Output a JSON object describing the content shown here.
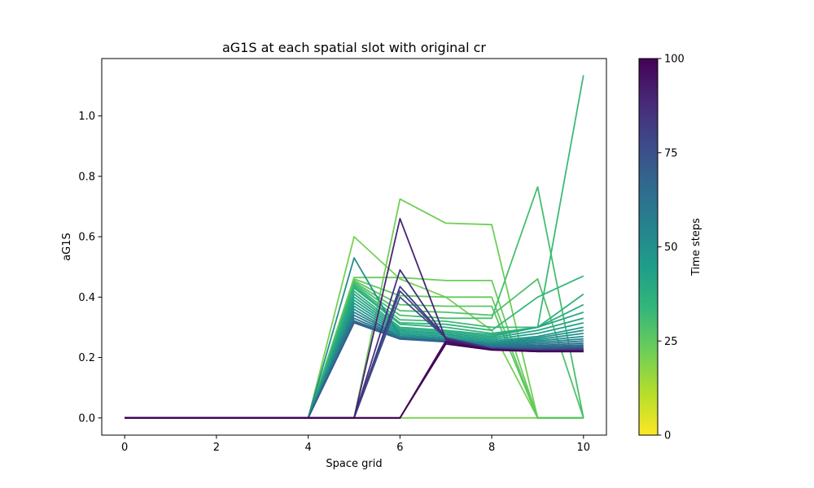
{
  "chart_data": {
    "type": "line",
    "title": "aG1S at each spatial slot with original cr",
    "xlabel": "Space grid",
    "ylabel": "aG1S",
    "xlim": [
      -0.5,
      10.5
    ],
    "ylim": [
      -0.057,
      1.19
    ],
    "x_ticks": [
      0,
      2,
      4,
      6,
      8,
      10
    ],
    "x_tick_labels": [
      "0",
      "2",
      "4",
      "6",
      "8",
      "10"
    ],
    "y_ticks": [
      0.0,
      0.2,
      0.4,
      0.6,
      0.8,
      1.0
    ],
    "y_tick_labels": [
      "0.0",
      "0.2",
      "0.4",
      "0.6",
      "0.8",
      "1.0"
    ],
    "x": [
      0,
      1,
      2,
      3,
      4,
      5,
      6,
      7,
      8,
      9,
      10
    ],
    "grid": false,
    "legend": "none",
    "colormap": "viridis",
    "colormap_stops": [
      "#fde725",
      "#b5de2b",
      "#6ece58",
      "#35b779",
      "#1f9e89",
      "#26828e",
      "#31688e",
      "#3e4989",
      "#482878",
      "#440154"
    ],
    "colorbar": {
      "label": "Time steps",
      "range": [
        0,
        100
      ],
      "ticks": [
        0,
        25,
        50,
        75,
        100
      ],
      "tick_labels": [
        "0",
        "25",
        "50",
        "75",
        "100"
      ]
    },
    "series": [
      {
        "time": 20,
        "values": [
          0,
          0,
          0,
          0,
          0,
          0,
          0,
          0,
          0,
          0,
          0
        ]
      },
      {
        "time": 21,
        "values": [
          0,
          0,
          0,
          0,
          0,
          0.6,
          0.46,
          0.4,
          0.29,
          0,
          0
        ]
      },
      {
        "time": 22,
        "values": [
          0,
          0,
          0,
          0,
          0,
          0,
          0.725,
          0.645,
          0.64,
          0,
          0
        ]
      },
      {
        "time": 23,
        "values": [
          0,
          0,
          0,
          0,
          0,
          0.465,
          0.465,
          0.455,
          0.455,
          0,
          0
        ]
      },
      {
        "time": 24,
        "values": [
          0,
          0,
          0,
          0,
          0,
          0.46,
          0.405,
          0.4,
          0.4,
          0,
          0
        ]
      },
      {
        "time": 26,
        "values": [
          0,
          0,
          0,
          0,
          0,
          0.455,
          0.375,
          0.37,
          0.37,
          0,
          0
        ]
      },
      {
        "time": 28,
        "values": [
          0,
          0,
          0,
          0,
          0,
          0.45,
          0.355,
          0.35,
          0.34,
          0.46,
          0
        ]
      },
      {
        "time": 30,
        "values": [
          0,
          0,
          0,
          0,
          0,
          0.445,
          0.34,
          0.33,
          0.33,
          0.765,
          0
        ]
      },
      {
        "time": 32,
        "values": [
          0,
          0,
          0,
          0,
          0,
          0.44,
          0.325,
          0.32,
          0.3,
          0.3,
          1.135
        ]
      },
      {
        "time": 34,
        "values": [
          0,
          0,
          0,
          0,
          0,
          0.435,
          0.315,
          0.31,
          0.29,
          0.4,
          0.47
        ]
      },
      {
        "time": 36,
        "values": [
          0,
          0,
          0,
          0,
          0,
          0.43,
          0.31,
          0.3,
          0.28,
          0.3,
          0.41
        ]
      },
      {
        "time": 38,
        "values": [
          0,
          0,
          0,
          0,
          0,
          0.42,
          0.3,
          0.29,
          0.275,
          0.3,
          0.375
        ]
      },
      {
        "time": 40,
        "values": [
          0,
          0,
          0,
          0,
          0,
          0.41,
          0.295,
          0.285,
          0.27,
          0.3,
          0.35
        ]
      },
      {
        "time": 42,
        "values": [
          0,
          0,
          0,
          0,
          0,
          0.4,
          0.29,
          0.28,
          0.265,
          0.29,
          0.33
        ]
      },
      {
        "time": 44,
        "values": [
          0,
          0,
          0,
          0,
          0,
          0.39,
          0.285,
          0.275,
          0.26,
          0.28,
          0.315
        ]
      },
      {
        "time": 46,
        "values": [
          0,
          0,
          0,
          0,
          0,
          0.38,
          0.28,
          0.27,
          0.255,
          0.27,
          0.3
        ]
      },
      {
        "time": 48,
        "values": [
          0,
          0,
          0,
          0,
          0,
          0.37,
          0.275,
          0.265,
          0.25,
          0.265,
          0.29
        ]
      },
      {
        "time": 50,
        "values": [
          0,
          0,
          0,
          0,
          0,
          0.53,
          0.27,
          0.262,
          0.248,
          0.26,
          0.28
        ]
      },
      {
        "time": 52,
        "values": [
          0,
          0,
          0,
          0,
          0,
          0.36,
          0.27,
          0.26,
          0.245,
          0.255,
          0.27
        ]
      },
      {
        "time": 55,
        "values": [
          0,
          0,
          0,
          0,
          0,
          0.35,
          0.268,
          0.258,
          0.242,
          0.25,
          0.262
        ]
      },
      {
        "time": 58,
        "values": [
          0,
          0,
          0,
          0,
          0,
          0.34,
          0.265,
          0.256,
          0.24,
          0.245,
          0.255
        ]
      },
      {
        "time": 61,
        "values": [
          0,
          0,
          0,
          0,
          0,
          0.33,
          0.264,
          0.255,
          0.237,
          0.24,
          0.248
        ]
      },
      {
        "time": 64,
        "values": [
          0,
          0,
          0,
          0,
          0,
          0.322,
          0.263,
          0.254,
          0.235,
          0.236,
          0.242
        ]
      },
      {
        "time": 67,
        "values": [
          0,
          0,
          0,
          0,
          0,
          0.318,
          0.262,
          0.253,
          0.233,
          0.233,
          0.237
        ]
      },
      {
        "time": 70,
        "values": [
          0,
          0,
          0,
          0,
          0,
          0.315,
          0.261,
          0.252,
          0.231,
          0.23,
          0.233
        ]
      },
      {
        "time": 74,
        "values": [
          0,
          0,
          0,
          0,
          0,
          0,
          0.4,
          0.265,
          0.232,
          0.228,
          0.23
        ]
      },
      {
        "time": 78,
        "values": [
          0,
          0,
          0,
          0,
          0,
          0,
          0.42,
          0.265,
          0.23,
          0.226,
          0.228
        ]
      },
      {
        "time": 82,
        "values": [
          0,
          0,
          0,
          0,
          0,
          0,
          0.435,
          0.265,
          0.229,
          0.224,
          0.226
        ]
      },
      {
        "time": 86,
        "values": [
          0,
          0,
          0,
          0,
          0,
          0,
          0.49,
          0.262,
          0.228,
          0.223,
          0.224
        ]
      },
      {
        "time": 90,
        "values": [
          0,
          0,
          0,
          0,
          0,
          0,
          0.66,
          0.26,
          0.227,
          0.222,
          0.222
        ]
      },
      {
        "time": 94,
        "values": [
          0,
          0,
          0,
          0,
          0,
          0,
          0,
          0.255,
          0.226,
          0.221,
          0.221
        ]
      },
      {
        "time": 97,
        "values": [
          0,
          0,
          0,
          0,
          0,
          0,
          0,
          0.25,
          0.226,
          0.22,
          0.22
        ]
      },
      {
        "time": 100,
        "values": [
          0,
          0,
          0,
          0,
          0,
          0,
          0,
          0.245,
          0.225,
          0.22,
          0.22
        ]
      }
    ]
  }
}
